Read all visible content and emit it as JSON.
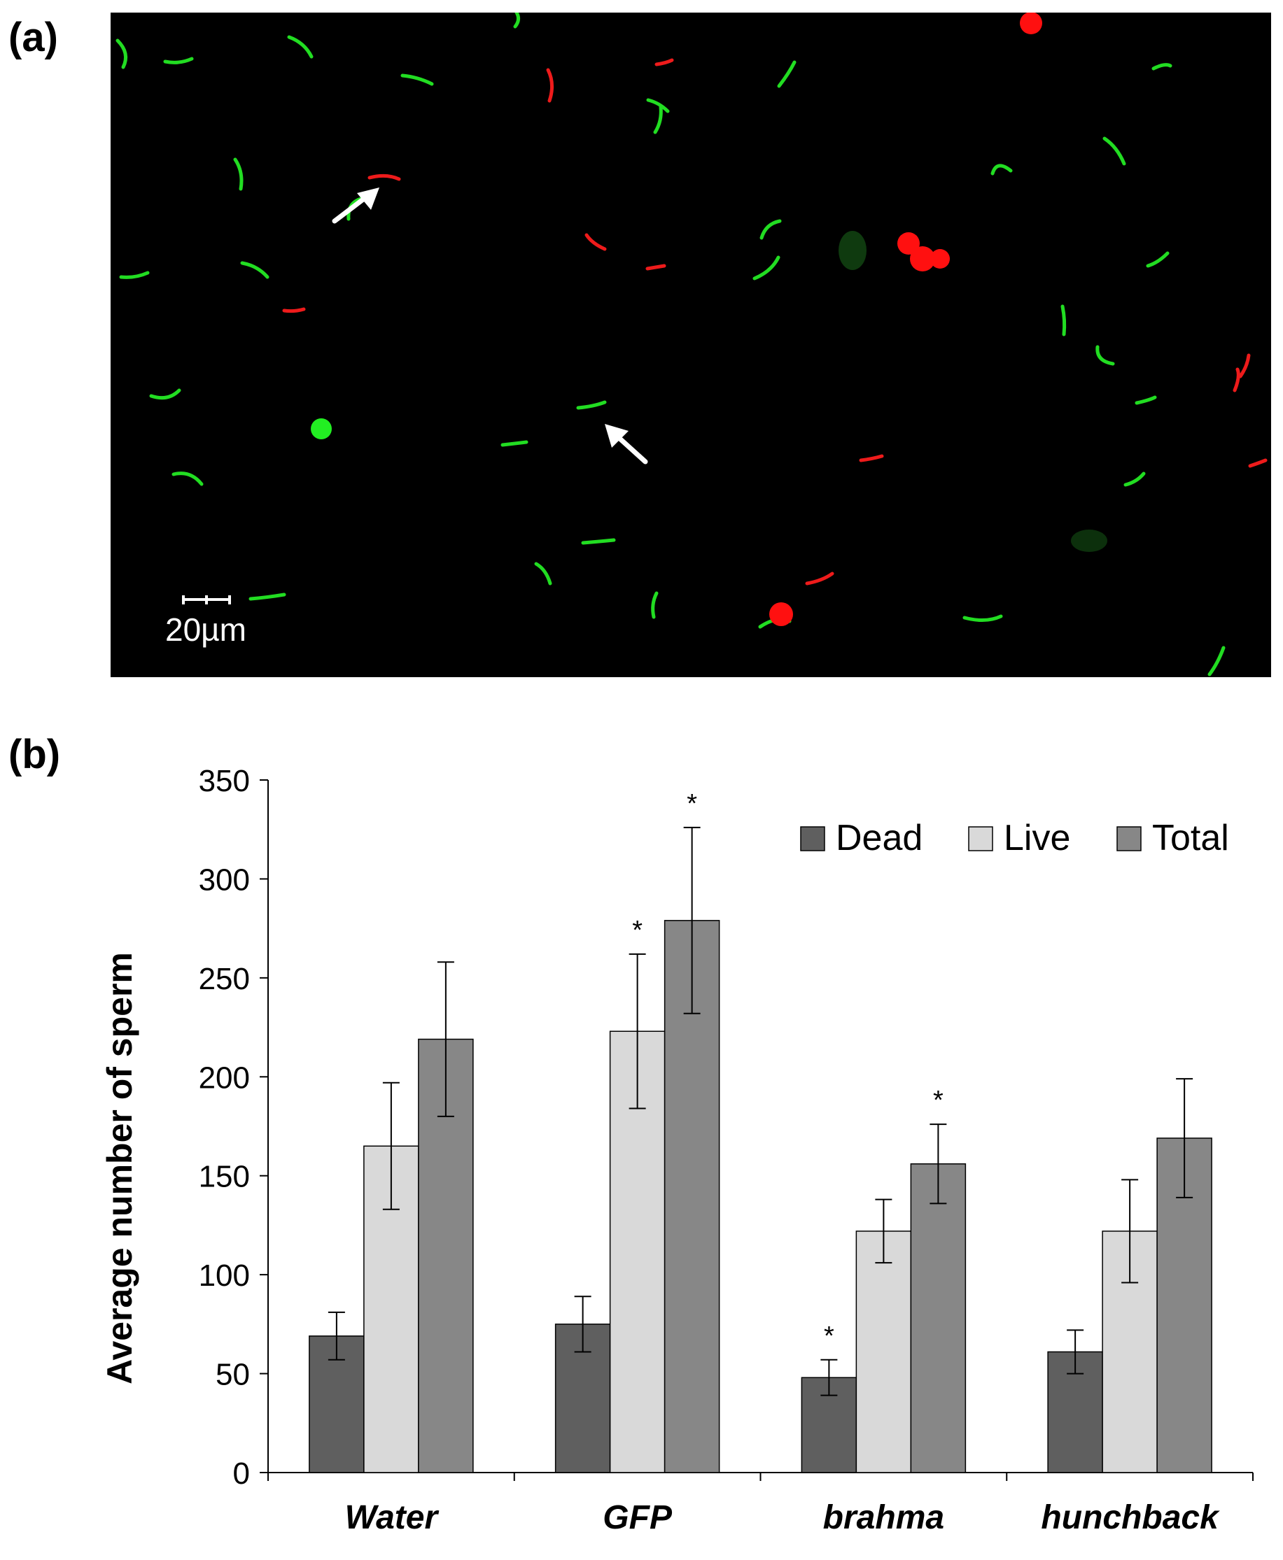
{
  "panels": {
    "a": {
      "label": "(a)",
      "scale_bar": "20µm"
    },
    "b": {
      "label": "(b)"
    }
  },
  "chart_data": {
    "type": "bar",
    "categories": [
      "Water",
      "GFP",
      "brahma",
      "hunchback"
    ],
    "xlabel": "",
    "ylabel": "Average number of sperm",
    "ylim": [
      0,
      350
    ],
    "yticks": [
      0,
      50,
      100,
      150,
      200,
      250,
      300,
      350
    ],
    "grid": false,
    "legend": "top-right",
    "series": [
      {
        "name": "Dead",
        "color": "#5f5f5f",
        "values": [
          69,
          75,
          48,
          61
        ],
        "errors": [
          12,
          14,
          9,
          11
        ],
        "significant": [
          false,
          false,
          true,
          false
        ]
      },
      {
        "name": "Live",
        "color": "#d9d9d9",
        "values": [
          165,
          223,
          122,
          122
        ],
        "errors": [
          32,
          39,
          16,
          26
        ],
        "significant": [
          false,
          true,
          false,
          false
        ]
      },
      {
        "name": "Total",
        "color": "#878787",
        "values": [
          219,
          279,
          156,
          169
        ],
        "errors": [
          39,
          47,
          20,
          30
        ],
        "significant": [
          false,
          true,
          true,
          false
        ]
      }
    ],
    "significance_marker": "*"
  }
}
